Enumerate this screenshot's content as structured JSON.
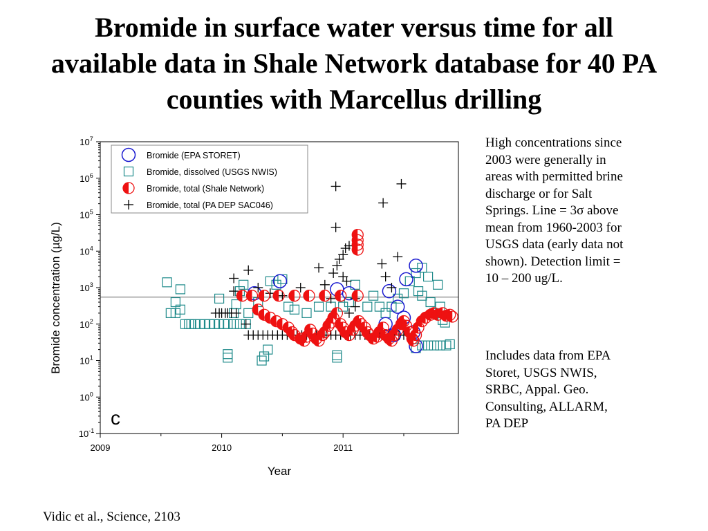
{
  "slide": {
    "title_lines": [
      "Bromide in surface water versus time for all",
      "available data in Shale Network database for 40 PA",
      "counties with Marcellus drilling"
    ],
    "note1_lines": [
      "High concentrations since",
      "2003 were generally in",
      "areas with permitted brine",
      "discharge or for Salt",
      "Springs. Line = 3σ above",
      "mean from 1960-2003 for",
      "USGS data (early data not",
      "shown). Detection limit =",
      "10 – 200 ug/L."
    ],
    "note2_lines": [
      "Includes data from EPA",
      "Storet, USGS NWIS,",
      "SRBC, Appal. Geo.",
      "Consulting, ALLARM,",
      "PA DEP"
    ],
    "citation": "Vidic et al., Science, 2103"
  },
  "chart_data": {
    "type": "scatter",
    "xlabel": "Year",
    "ylabel": "Bromide concentration (µg/L)",
    "xlim": [
      2009,
      2011.95
    ],
    "x_ticks": [
      2009,
      2010,
      2011
    ],
    "y_scale": "log",
    "ylim": [
      0.1,
      10000000
    ],
    "y_ticks": [
      {
        "value": 0.1,
        "label": "10",
        "exp": "-1"
      },
      {
        "value": 1,
        "label": "10",
        "exp": "0"
      },
      {
        "value": 10,
        "label": "10",
        "exp": "1"
      },
      {
        "value": 100,
        "label": "10",
        "exp": "2"
      },
      {
        "value": 1000,
        "label": "10",
        "exp": "3"
      },
      {
        "value": 10000,
        "label": "10",
        "exp": "4"
      },
      {
        "value": 100000,
        "label": "10",
        "exp": "5"
      },
      {
        "value": 1000000,
        "label": "10",
        "exp": "6"
      },
      {
        "value": 10000000,
        "label": "10",
        "exp": "7"
      }
    ],
    "panel_label": "c",
    "threshold_line": 550,
    "legend_position": "top-left",
    "grid": false,
    "colors": {
      "epa": "#1a1ad0",
      "usgs": "#1e8a8a",
      "shale": "#ee1111",
      "padep": "#000000",
      "line": "#666666"
    },
    "series": [
      {
        "name": "Bromide (EPA STORET)",
        "marker": "open-circle",
        "color": "#1a1ad0",
        "points": [
          [
            2010.27,
            700
          ],
          [
            2010.48,
            1500
          ],
          [
            2010.95,
            900
          ],
          [
            2011.05,
            700
          ],
          [
            2011.38,
            800
          ],
          [
            2011.45,
            300
          ],
          [
            2011.52,
            1700
          ],
          [
            2011.6,
            4000
          ],
          [
            2011.5,
            150
          ],
          [
            2011.58,
            60
          ],
          [
            2011.6,
            25
          ],
          [
            2011.35,
            100
          ],
          [
            2011.42,
            50
          ]
        ]
      },
      {
        "name": "Bromide, dissolved (USGS NWIS)",
        "marker": "open-square",
        "color": "#1e8a8a",
        "points": [
          [
            2009.55,
            1400
          ],
          [
            2009.62,
            400
          ],
          [
            2009.66,
            900
          ],
          [
            2009.58,
            200
          ],
          [
            2009.62,
            200
          ],
          [
            2009.66,
            250
          ],
          [
            2009.7,
            100
          ],
          [
            2009.73,
            100
          ],
          [
            2009.75,
            100
          ],
          [
            2009.78,
            100
          ],
          [
            2009.82,
            100
          ],
          [
            2009.86,
            100
          ],
          [
            2009.9,
            100
          ],
          [
            2009.94,
            100
          ],
          [
            2009.98,
            100
          ],
          [
            2010.02,
            100
          ],
          [
            2010.05,
            100
          ],
          [
            2010.1,
            100
          ],
          [
            2010.15,
            100
          ],
          [
            2010.2,
            100
          ],
          [
            2009.98,
            500
          ],
          [
            2010.05,
            15
          ],
          [
            2010.05,
            12
          ],
          [
            2010.1,
            200
          ],
          [
            2010.12,
            350
          ],
          [
            2010.15,
            800
          ],
          [
            2010.18,
            1200
          ],
          [
            2010.22,
            200
          ],
          [
            2010.3,
            400
          ],
          [
            2010.33,
            10
          ],
          [
            2010.35,
            13
          ],
          [
            2010.38,
            20
          ],
          [
            2010.4,
            1500
          ],
          [
            2010.45,
            1200
          ],
          [
            2010.5,
            1700
          ],
          [
            2010.55,
            300
          ],
          [
            2010.6,
            250
          ],
          [
            2010.7,
            200
          ],
          [
            2010.8,
            300
          ],
          [
            2010.9,
            300
          ],
          [
            2010.95,
            12
          ],
          [
            2010.95,
            14
          ],
          [
            2011.0,
            300
          ],
          [
            2011.05,
            400
          ],
          [
            2011.1,
            1200
          ],
          [
            2011.2,
            300
          ],
          [
            2011.25,
            600
          ],
          [
            2011.3,
            300
          ],
          [
            2011.35,
            200
          ],
          [
            2011.4,
            300
          ],
          [
            2011.45,
            500
          ],
          [
            2011.5,
            700
          ],
          [
            2011.55,
            1500
          ],
          [
            2011.6,
            2500
          ],
          [
            2011.62,
            800
          ],
          [
            2011.65,
            3500
          ],
          [
            2011.65,
            600
          ],
          [
            2011.7,
            2000
          ],
          [
            2011.72,
            400
          ],
          [
            2011.75,
            200
          ],
          [
            2011.78,
            1200
          ],
          [
            2011.8,
            300
          ],
          [
            2011.82,
            130
          ],
          [
            2011.84,
            110
          ],
          [
            2011.65,
            26
          ],
          [
            2011.7,
            26
          ],
          [
            2011.75,
            26
          ],
          [
            2011.8,
            26
          ],
          [
            2011.85,
            26
          ],
          [
            2011.88,
            28
          ],
          [
            2011.6,
            22
          ]
        ]
      },
      {
        "name": "Bromide, total (Shale Network)",
        "marker": "half-filled-circle",
        "color": "#ee1111",
        "points": [
          [
            2010.17,
            600
          ],
          [
            2010.25,
            600
          ],
          [
            2010.35,
            600
          ],
          [
            2010.47,
            600
          ],
          [
            2010.6,
            600
          ],
          [
            2010.72,
            600
          ],
          [
            2010.85,
            600
          ],
          [
            2010.98,
            600
          ],
          [
            2011.12,
            600
          ],
          [
            2011.12,
            28000
          ],
          [
            2011.12,
            20000
          ],
          [
            2011.12,
            15000
          ],
          [
            2011.12,
            11000
          ],
          [
            2010.3,
            250
          ],
          [
            2010.35,
            180
          ],
          [
            2010.4,
            150
          ],
          [
            2010.45,
            120
          ],
          [
            2010.5,
            100
          ],
          [
            2010.55,
            80
          ],
          [
            2010.58,
            60
          ],
          [
            2010.6,
            50
          ],
          [
            2010.65,
            40
          ],
          [
            2010.68,
            35
          ],
          [
            2010.7,
            45
          ],
          [
            2010.73,
            70
          ],
          [
            2010.75,
            55
          ],
          [
            2010.78,
            40
          ],
          [
            2010.8,
            35
          ],
          [
            2010.83,
            50
          ],
          [
            2010.85,
            60
          ],
          [
            2010.88,
            90
          ],
          [
            2010.9,
            110
          ],
          [
            2010.92,
            150
          ],
          [
            2010.95,
            200
          ],
          [
            2010.98,
            100
          ],
          [
            2011.0,
            80
          ],
          [
            2011.02,
            60
          ],
          [
            2011.05,
            50
          ],
          [
            2011.08,
            70
          ],
          [
            2011.1,
            90
          ],
          [
            2011.13,
            120
          ],
          [
            2011.15,
            100
          ],
          [
            2011.18,
            80
          ],
          [
            2011.2,
            60
          ],
          [
            2011.22,
            50
          ],
          [
            2011.25,
            40
          ],
          [
            2011.28,
            45
          ],
          [
            2011.3,
            60
          ],
          [
            2011.33,
            80
          ],
          [
            2011.35,
            50
          ],
          [
            2011.38,
            40
          ],
          [
            2011.4,
            35
          ],
          [
            2011.42,
            50
          ],
          [
            2011.45,
            70
          ],
          [
            2011.48,
            100
          ],
          [
            2011.5,
            120
          ],
          [
            2011.52,
            90
          ],
          [
            2011.55,
            60
          ],
          [
            2011.57,
            40
          ],
          [
            2011.58,
            35
          ],
          [
            2011.6,
            50
          ],
          [
            2011.62,
            80
          ],
          [
            2011.65,
            120
          ],
          [
            2011.68,
            150
          ],
          [
            2011.72,
            180
          ],
          [
            2011.75,
            200
          ],
          [
            2011.78,
            180
          ],
          [
            2011.82,
            200
          ],
          [
            2011.85,
            170
          ],
          [
            2011.88,
            180
          ],
          [
            2011.9,
            160
          ]
        ]
      },
      {
        "name": "Bromide, total (PA DEP SAC046)",
        "marker": "plus",
        "color": "#000000",
        "points": [
          [
            2009.95,
            200
          ],
          [
            2009.98,
            200
          ],
          [
            2010.0,
            200
          ],
          [
            2010.03,
            200
          ],
          [
            2010.05,
            200
          ],
          [
            2010.08,
            200
          ],
          [
            2010.12,
            200
          ],
          [
            2010.1,
            1800
          ],
          [
            2010.1,
            800
          ],
          [
            2010.22,
            3000
          ],
          [
            2010.2,
            100
          ],
          [
            2010.22,
            50
          ],
          [
            2010.26,
            50
          ],
          [
            2010.3,
            50
          ],
          [
            2010.34,
            50
          ],
          [
            2010.38,
            50
          ],
          [
            2010.42,
            50
          ],
          [
            2010.46,
            50
          ],
          [
            2010.5,
            50
          ],
          [
            2010.54,
            50
          ],
          [
            2010.58,
            50
          ],
          [
            2010.62,
            50
          ],
          [
            2010.66,
            50
          ],
          [
            2010.7,
            50
          ],
          [
            2010.74,
            50
          ],
          [
            2010.78,
            50
          ],
          [
            2010.82,
            50
          ],
          [
            2010.86,
            50
          ],
          [
            2010.9,
            50
          ],
          [
            2010.94,
            50
          ],
          [
            2010.98,
            50
          ],
          [
            2011.02,
            50
          ],
          [
            2011.06,
            50
          ],
          [
            2011.1,
            50
          ],
          [
            2011.14,
            50
          ],
          [
            2011.18,
            50
          ],
          [
            2011.22,
            50
          ],
          [
            2011.26,
            50
          ],
          [
            2011.3,
            50
          ],
          [
            2011.34,
            50
          ],
          [
            2011.38,
            50
          ],
          [
            2011.42,
            50
          ],
          [
            2011.46,
            50
          ],
          [
            2011.5,
            50
          ],
          [
            2011.54,
            50
          ],
          [
            2010.3,
            1000
          ],
          [
            2010.4,
            700
          ],
          [
            2010.5,
            600
          ],
          [
            2010.65,
            1000
          ],
          [
            2010.8,
            3500
          ],
          [
            2010.85,
            1200
          ],
          [
            2010.9,
            500
          ],
          [
            2010.95,
            4000
          ],
          [
            2010.97,
            6000
          ],
          [
            2011.0,
            8000
          ],
          [
            2011.02,
            12000
          ],
          [
            2011.05,
            14000
          ],
          [
            2011.0,
            2000
          ],
          [
            2011.03,
            1500
          ],
          [
            2010.94,
            600000
          ],
          [
            2010.94,
            45000
          ],
          [
            2011.05,
            200
          ],
          [
            2011.1,
            500
          ],
          [
            2011.32,
            4500
          ],
          [
            2011.35,
            2000
          ],
          [
            2011.45,
            7000
          ],
          [
            2011.4,
            1000
          ],
          [
            2011.33,
            210000
          ],
          [
            2011.48,
            700000
          ],
          [
            2010.92,
            2500
          ],
          [
            2011.1,
            300
          ]
        ]
      }
    ]
  }
}
